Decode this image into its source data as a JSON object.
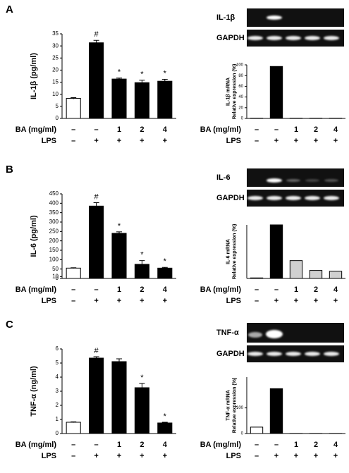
{
  "panels": [
    {
      "letter": "A",
      "gel": {
        "target": "IL-1β",
        "control": "GAPDH"
      }
    },
    {
      "letter": "B",
      "gel": {
        "target": "IL-6",
        "control": "GAPDH"
      }
    },
    {
      "letter": "C",
      "gel": {
        "target": "TNF-α",
        "control": "GAPDH"
      }
    }
  ],
  "chart_data": [
    {
      "type": "bar",
      "ylabel": [
        "IL-1β (pg/ml)"
      ],
      "values": [
        8.3,
        31.3,
        16.3,
        14.8,
        15.4
      ],
      "errors": [
        0.3,
        1.0,
        0.4,
        1.0,
        0.8
      ],
      "colors": [
        "#ffffff",
        "#000000",
        "#000000",
        "#000000",
        "#000000"
      ],
      "markers": [
        null,
        "#",
        "*",
        "*",
        "*"
      ],
      "ylim": [
        0,
        35
      ],
      "yticks": [
        0,
        5,
        10,
        15,
        20,
        25,
        30,
        35
      ],
      "conditions": [
        {
          "name": "BA (mg/ml)",
          "labels": [
            "–",
            "–",
            "1",
            "2",
            "4"
          ]
        },
        {
          "name": "LPS",
          "labels": [
            "–",
            "+",
            "+",
            "+",
            "+"
          ]
        }
      ]
    },
    {
      "type": "bar",
      "ylabel": [
        "IL-1β mRNA",
        "Relative expression (%)"
      ],
      "values": [
        0.5,
        97,
        0.5,
        0.5,
        0.5
      ],
      "colors": [
        "#ffffff",
        "#000000",
        "#000000",
        "#000000",
        "#000000"
      ],
      "ylim": [
        0,
        100
      ],
      "yticks": [
        0,
        20,
        40,
        60,
        80,
        100
      ],
      "conditions": [
        {
          "name": "BA (mg/ml)",
          "labels": [
            "–",
            "–",
            "1",
            "2",
            "4"
          ]
        },
        {
          "name": "LPS",
          "labels": [
            "–",
            "+",
            "+",
            "+",
            "+"
          ]
        }
      ]
    },
    {
      "type": "bar",
      "ylabel": [
        "IL-6 (pg/ml)"
      ],
      "values": [
        55,
        385,
        240,
        75,
        55
      ],
      "errors": [
        2,
        18,
        8,
        20,
        4
      ],
      "colors": [
        "#ffffff",
        "#000000",
        "#000000",
        "#000000",
        "#000000"
      ],
      "markers": [
        null,
        "#",
        "*",
        "*",
        "*"
      ],
      "ylim": [
        0,
        450
      ],
      "yticks": [
        0,
        10,
        50,
        100,
        150,
        200,
        250,
        300,
        350,
        400,
        450
      ],
      "conditions": [
        {
          "name": "BA (mg/ml)",
          "labels": [
            "–",
            "–",
            "1",
            "2",
            "4"
          ]
        },
        {
          "name": "LPS",
          "labels": [
            "–",
            "+",
            "+",
            "+",
            "+"
          ]
        }
      ]
    },
    {
      "type": "bar",
      "ylabel": [
        "IL-6 mRNA",
        "Relative expression (%)"
      ],
      "values": [
        0.3,
        30,
        10,
        4.5,
        4
      ],
      "colors": [
        "#ffffff",
        "#000000",
        "#d0d0d0",
        "#d0d0d0",
        "#d0d0d0"
      ],
      "ylim": [
        0,
        30
      ],
      "conditions": [
        {
          "name": "BA (mg/ml)",
          "labels": [
            "–",
            "–",
            "1",
            "2",
            "4"
          ]
        },
        {
          "name": "LPS",
          "labels": [
            "–",
            "+",
            "+",
            "+",
            "+"
          ]
        }
      ]
    },
    {
      "type": "bar",
      "ylabel": [
        "TNF-α (ng/ml)"
      ],
      "values": [
        0.8,
        5.35,
        5.1,
        3.25,
        0.75
      ],
      "errors": [
        0.03,
        0.1,
        0.2,
        0.3,
        0.05
      ],
      "colors": [
        "#ffffff",
        "#000000",
        "#000000",
        "#000000",
        "#000000"
      ],
      "markers": [
        null,
        "#",
        null,
        "*",
        "*"
      ],
      "ylim": [
        0,
        6
      ],
      "yticks": [
        0,
        1,
        2,
        3,
        4,
        5,
        6
      ],
      "conditions": [
        {
          "name": "BA (mg/ml)",
          "labels": [
            "–",
            "–",
            "1",
            "2",
            "4"
          ]
        },
        {
          "name": "LPS",
          "labels": [
            "–",
            "+",
            "+",
            "+",
            "+"
          ]
        }
      ]
    },
    {
      "type": "bar",
      "ylabel": [
        "TNF-α mRNA",
        "Relative expression (%)"
      ],
      "values": [
        25,
        175,
        0.5,
        0.5,
        0.5
      ],
      "colors": [
        "#ffffff",
        "#000000",
        "#000000",
        "#000000",
        "#000000"
      ],
      "ylim": [
        0,
        220
      ],
      "yticks": [
        0,
        100
      ],
      "conditions": [
        {
          "name": "BA (mg/ml)",
          "labels": [
            "–",
            "–",
            "1",
            "2",
            "4"
          ]
        },
        {
          "name": "LPS",
          "labels": [
            "–",
            "+",
            "+",
            "+",
            "+"
          ]
        }
      ]
    }
  ]
}
